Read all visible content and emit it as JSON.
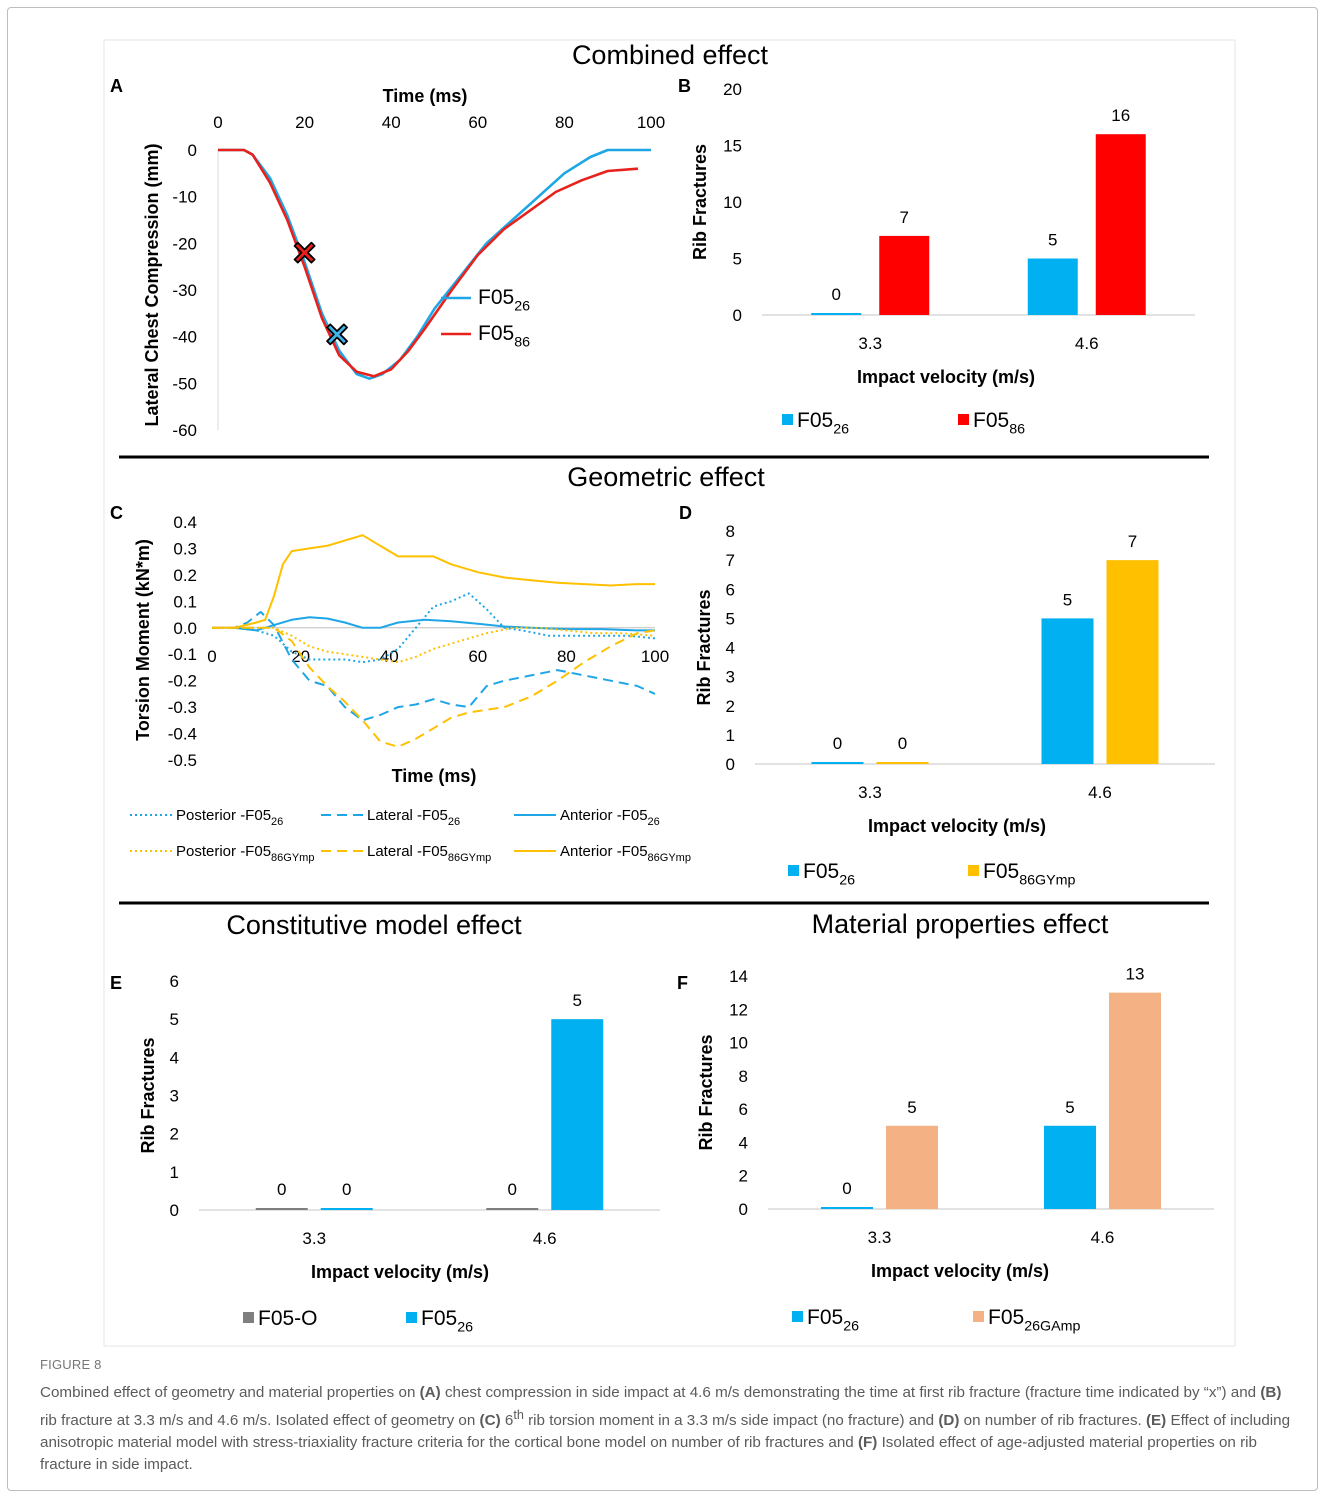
{
  "figure": {
    "sections": {
      "combined": "Combined effect",
      "geometric": "Geometric effect",
      "constitutive": "Constitutive model effect",
      "material": "Material properties effect"
    },
    "panel_letters": {
      "A": "A",
      "B": "B",
      "C": "C",
      "D": "D",
      "E": "E",
      "F": "F"
    },
    "caption_label": "FIGURE 8",
    "caption": [
      {
        "t": "Combined effect of geometry and material properties on "
      },
      {
        "b": "(A)"
      },
      {
        "t": " chest compression in side impact at 4.6 m/s demonstrating the time at first rib fracture (fracture time indicated by “x”) and "
      },
      {
        "b": "(B)"
      },
      {
        "t": " rib fracture at 3.3 m/s and 4.6 m/s. Isolated effect of geometry on "
      },
      {
        "b": "(C)"
      },
      {
        "t": " 6"
      },
      {
        "sup": "th"
      },
      {
        "t": " rib torsion moment in a 3.3 m/s side impact (no fracture) and "
      },
      {
        "b": "(D)"
      },
      {
        "t": " on number of rib fractures. "
      },
      {
        "b": "(E)"
      },
      {
        "t": " Effect of including anisotropic material model with stress-triaxiality fracture criteria for the cortical bone model on number of rib fractures and "
      },
      {
        "b": "(F)"
      },
      {
        "t": " Isolated effect of age-adjusted material properties on rib fracture in side impact."
      }
    ]
  },
  "colors": {
    "blue": "#00b0f0",
    "red": "#ff0000",
    "orange": "#ffc000",
    "grey": "#7f7f7f",
    "salmon": "#f4b183",
    "lineblue": "#1ea6e6",
    "linered": "#e8211c"
  },
  "chart_data": [
    {
      "panel": "A",
      "type": "line",
      "xlabel": "Time (ms)",
      "ylabel": "Lateral Chest Compression (mm)",
      "xlim": [
        0,
        100
      ],
      "ylim": [
        -60,
        0
      ],
      "xticks": [
        "0",
        "20",
        "40",
        "60",
        "80",
        "100"
      ],
      "yticks": [
        "0",
        "-10",
        "-20",
        "-30",
        "-40",
        "-50",
        "-60"
      ],
      "legend_position": "right",
      "series": [
        {
          "name": "F05",
          "sub": "26",
          "color": "#1ea6e6",
          "x": [
            0,
            6,
            8,
            12,
            16,
            20,
            24,
            28,
            32,
            35,
            38,
            42,
            46,
            50,
            56,
            62,
            68,
            74,
            80,
            86,
            90,
            93,
            100
          ],
          "y": [
            0,
            0,
            -1,
            -6,
            -14,
            -24,
            -35,
            -43,
            -48,
            -49,
            -48,
            -45,
            -40,
            -34,
            -27,
            -20,
            -15,
            -10,
            -5,
            -1.5,
            0,
            0,
            0
          ],
          "marker": {
            "x": 27.5,
            "y": -39.5,
            "symbol": "x"
          }
        },
        {
          "name": "F05",
          "sub": "86",
          "color": "#e8211c",
          "x": [
            0,
            6,
            8,
            12,
            16,
            20,
            24,
            28,
            32,
            36,
            40,
            44,
            48,
            54,
            60,
            66,
            72,
            78,
            84,
            90,
            97
          ],
          "y": [
            0,
            0,
            -1,
            -7,
            -15,
            -25,
            -36,
            -44,
            -47.5,
            -48.5,
            -47,
            -43,
            -38,
            -30,
            -22.5,
            -17,
            -13,
            -9,
            -6.5,
            -4.5,
            -4
          ],
          "marker": {
            "x": 20,
            "y": -22,
            "symbol": "x"
          }
        }
      ]
    },
    {
      "panel": "B",
      "type": "bar",
      "xlabel": "Impact velocity (m/s)",
      "ylabel": "Rib Fractures",
      "ylim": [
        0,
        20
      ],
      "yticks": [
        "0",
        "5",
        "10",
        "15",
        "20"
      ],
      "categories": [
        "3.3",
        "4.6"
      ],
      "series": [
        {
          "name": "F05",
          "sub": "26",
          "color": "#00b0f0",
          "values": [
            0,
            5
          ]
        },
        {
          "name": "F05",
          "sub": "86",
          "color": "#ff0000",
          "values": [
            7,
            16
          ]
        }
      ],
      "legend_position": "bottom"
    },
    {
      "panel": "C",
      "type": "line",
      "xlabel": "Time (ms)",
      "ylabel": "Torsion Moment (kN*m)",
      "xlim": [
        0,
        100
      ],
      "ylim": [
        -0.5,
        0.4
      ],
      "xticks": [
        "0",
        "20",
        "40",
        "60",
        "80",
        "100"
      ],
      "yticks": [
        "0.4",
        "0.3",
        "0.2",
        "0.1",
        "0.0",
        "-0.1",
        "-0.2",
        "-0.3",
        "-0.4",
        "-0.5"
      ],
      "legend_position": "bottom",
      "series": [
        {
          "name": "Posterior -F05",
          "sub": "26",
          "color": "#1ea6e6",
          "dash": "dotted",
          "x": [
            0,
            5,
            10,
            14,
            18,
            22,
            26,
            30,
            34,
            38,
            42,
            46,
            50,
            54,
            58,
            62,
            66,
            70,
            76,
            82,
            88,
            94,
            100
          ],
          "y": [
            0,
            0,
            -0.01,
            -0.03,
            -0.09,
            -0.12,
            -0.12,
            -0.12,
            -0.13,
            -0.12,
            -0.08,
            0.0,
            0.08,
            0.1,
            0.13,
            0.07,
            0.0,
            -0.01,
            -0.03,
            -0.03,
            -0.03,
            -0.03,
            -0.04
          ]
        },
        {
          "name": "Lateral -F05",
          "sub": "26",
          "color": "#1ea6e6",
          "dash": "dashed",
          "x": [
            0,
            5,
            8,
            11,
            14,
            18,
            22,
            26,
            30,
            34,
            38,
            42,
            46,
            50,
            54,
            58,
            62,
            66,
            72,
            78,
            84,
            90,
            96,
            100
          ],
          "y": [
            0,
            0,
            0.02,
            0.06,
            0.01,
            -0.12,
            -0.2,
            -0.22,
            -0.3,
            -0.35,
            -0.33,
            -0.3,
            -0.29,
            -0.27,
            -0.29,
            -0.3,
            -0.22,
            -0.2,
            -0.18,
            -0.16,
            -0.18,
            -0.2,
            -0.22,
            -0.25
          ]
        },
        {
          "name": "Anterior -F05",
          "sub": "26",
          "color": "#1ea6e6",
          "dash": "solid",
          "x": [
            0,
            5,
            10,
            14,
            18,
            22,
            26,
            30,
            34,
            38,
            42,
            48,
            54,
            60,
            66,
            72,
            80,
            88,
            96,
            100
          ],
          "y": [
            0,
            0,
            -0.01,
            0.01,
            0.03,
            0.04,
            0.035,
            0.02,
            0.0,
            0.0,
            0.02,
            0.03,
            0.025,
            0.015,
            0.005,
            0.0,
            -0.005,
            -0.005,
            -0.01,
            -0.01
          ]
        },
        {
          "name": "Posterior -F05",
          "sub": "86GYmp",
          "color": "#ffc000",
          "dash": "dotted",
          "x": [
            0,
            5,
            10,
            14,
            18,
            22,
            26,
            30,
            34,
            38,
            42,
            46,
            50,
            56,
            62,
            68,
            74,
            80,
            86,
            92,
            100
          ],
          "y": [
            0,
            0,
            0.0,
            0.0,
            -0.03,
            -0.07,
            -0.09,
            -0.1,
            -0.11,
            -0.12,
            -0.13,
            -0.11,
            -0.08,
            -0.05,
            -0.02,
            0.0,
            0.0,
            -0.01,
            -0.02,
            -0.02,
            -0.03
          ]
        },
        {
          "name": "Lateral -F05",
          "sub": "86GYmp",
          "color": "#ffc000",
          "dash": "dashed",
          "x": [
            0,
            5,
            10,
            14,
            18,
            22,
            26,
            30,
            34,
            38,
            42,
            46,
            50,
            54,
            58,
            62,
            66,
            72,
            78,
            84,
            90,
            96,
            100
          ],
          "y": [
            0,
            0,
            0.0,
            0.0,
            -0.05,
            -0.15,
            -0.22,
            -0.28,
            -0.35,
            -0.43,
            -0.45,
            -0.42,
            -0.38,
            -0.34,
            -0.32,
            -0.31,
            -0.3,
            -0.26,
            -0.2,
            -0.13,
            -0.07,
            -0.02,
            -0.01
          ]
        },
        {
          "name": "Anterior -F05",
          "sub": "86GYmp",
          "color": "#ffc000",
          "dash": "solid",
          "x": [
            0,
            5,
            10,
            12,
            14,
            16,
            18,
            22,
            26,
            30,
            34,
            38,
            42,
            46,
            50,
            54,
            60,
            66,
            72,
            78,
            84,
            90,
            96,
            100
          ],
          "y": [
            0,
            0,
            0.02,
            0.03,
            0.12,
            0.24,
            0.29,
            0.3,
            0.31,
            0.33,
            0.35,
            0.31,
            0.27,
            0.27,
            0.27,
            0.24,
            0.21,
            0.19,
            0.18,
            0.17,
            0.165,
            0.16,
            0.165,
            0.165
          ]
        }
      ]
    },
    {
      "panel": "D",
      "type": "bar",
      "xlabel": "Impact velocity (m/s)",
      "ylabel": "Rib Fractures",
      "ylim": [
        0,
        8
      ],
      "yticks": [
        "0",
        "1",
        "2",
        "3",
        "4",
        "5",
        "6",
        "7",
        "8"
      ],
      "categories": [
        "3.3",
        "4.6"
      ],
      "series": [
        {
          "name": "F05",
          "sub": "26",
          "color": "#00b0f0",
          "values": [
            0,
            5
          ]
        },
        {
          "name": "F05",
          "sub": "86GYmp",
          "color": "#ffc000",
          "values": [
            0,
            7
          ]
        }
      ],
      "legend_position": "bottom"
    },
    {
      "panel": "E",
      "type": "bar",
      "xlabel": "Impact velocity (m/s)",
      "ylabel": "Rib Fractures",
      "ylim": [
        0,
        6
      ],
      "yticks": [
        "0",
        "1",
        "2",
        "3",
        "4",
        "5",
        "6"
      ],
      "categories": [
        "3.3",
        "4.6"
      ],
      "series": [
        {
          "name": "F05-O",
          "sub": "",
          "color": "#7f7f7f",
          "values": [
            0,
            0
          ]
        },
        {
          "name": "F05",
          "sub": "26",
          "color": "#00b0f0",
          "values": [
            0,
            5
          ]
        }
      ],
      "legend_position": "bottom"
    },
    {
      "panel": "F",
      "type": "bar",
      "xlabel": "Impact velocity (m/s)",
      "ylabel": "Rib Fractures",
      "ylim": [
        0,
        14
      ],
      "yticks": [
        "0",
        "2",
        "4",
        "6",
        "8",
        "10",
        "12",
        "14"
      ],
      "categories": [
        "3.3",
        "4.6"
      ],
      "series": [
        {
          "name": "F05",
          "sub": "26",
          "color": "#00b0f0",
          "values": [
            0,
            5
          ]
        },
        {
          "name": "F05",
          "sub": "26GAmp",
          "color": "#f4b183",
          "values": [
            5,
            13
          ]
        }
      ],
      "legend_position": "bottom"
    }
  ]
}
